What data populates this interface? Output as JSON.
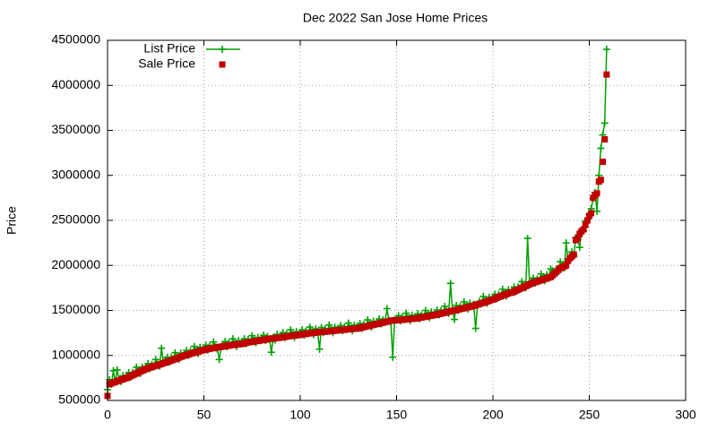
{
  "chart_data": {
    "type": "scatter",
    "title": "Dec 2022 San Jose Home Prices",
    "ylabel": "Price",
    "xlim": [
      0,
      300
    ],
    "xticks": [
      0,
      50,
      100,
      150,
      200,
      250,
      300
    ],
    "ylim": [
      500000,
      4500000
    ],
    "yticks": [
      500000,
      1000000,
      1500000,
      2000000,
      2500000,
      3000000,
      3500000,
      4000000,
      4500000
    ],
    "grid": true,
    "legend": "upper left",
    "x": [
      0,
      1,
      2,
      3,
      4,
      5,
      6,
      7,
      8,
      9,
      10,
      11,
      12,
      13,
      14,
      15,
      16,
      17,
      18,
      19,
      20,
      21,
      22,
      23,
      24,
      25,
      26,
      27,
      28,
      29,
      30,
      31,
      32,
      33,
      34,
      35,
      36,
      37,
      38,
      39,
      40,
      41,
      42,
      43,
      44,
      45,
      46,
      47,
      48,
      49,
      50,
      51,
      52,
      53,
      54,
      55,
      56,
      57,
      58,
      59,
      60,
      61,
      62,
      63,
      64,
      65,
      66,
      67,
      68,
      69,
      70,
      71,
      72,
      73,
      74,
      75,
      76,
      77,
      78,
      79,
      80,
      81,
      82,
      83,
      84,
      85,
      86,
      87,
      88,
      89,
      90,
      91,
      92,
      93,
      94,
      95,
      96,
      97,
      98,
      99,
      100,
      101,
      102,
      103,
      104,
      105,
      106,
      107,
      108,
      109,
      110,
      111,
      112,
      113,
      114,
      115,
      116,
      117,
      118,
      119,
      120,
      121,
      122,
      123,
      124,
      125,
      126,
      127,
      128,
      129,
      130,
      131,
      132,
      133,
      134,
      135,
      136,
      137,
      138,
      139,
      140,
      141,
      142,
      143,
      144,
      145,
      146,
      147,
      148,
      149,
      150,
      151,
      152,
      153,
      154,
      155,
      156,
      157,
      158,
      159,
      160,
      161,
      162,
      163,
      164,
      165,
      166,
      167,
      168,
      169,
      170,
      171,
      172,
      173,
      174,
      175,
      176,
      177,
      178,
      179,
      180,
      181,
      182,
      183,
      184,
      185,
      186,
      187,
      188,
      189,
      190,
      191,
      192,
      193,
      194,
      195,
      196,
      197,
      198,
      199,
      200,
      201,
      202,
      203,
      204,
      205,
      206,
      207,
      208,
      209,
      210,
      211,
      212,
      213,
      214,
      215,
      216,
      217,
      218,
      219,
      220,
      221,
      222,
      223,
      224,
      225,
      226,
      227,
      228,
      229,
      230,
      231,
      232,
      233,
      234,
      235,
      236,
      237,
      238,
      239,
      240,
      241,
      242,
      243,
      244,
      245,
      246,
      247,
      248,
      249,
      250,
      251,
      252,
      253,
      254,
      255,
      256,
      257,
      258,
      259
    ],
    "series": [
      {
        "name": "List Price",
        "color": "#00a000",
        "style": "linespoints",
        "values": [
          620000,
          730000,
          680000,
          830000,
          705000,
          840000,
          730000,
          710000,
          775000,
          750000,
          770000,
          810000,
          760000,
          810000,
          790000,
          870000,
          820000,
          800000,
          870000,
          845000,
          870000,
          910000,
          855000,
          900000,
          880000,
          955000,
          900000,
          880000,
          1080000,
          920000,
          940000,
          980000,
          925000,
          975000,
          950000,
          1030000,
          975000,
          955000,
          1025000,
          995000,
          1020000,
          1055000,
          1000000,
          1050000,
          1025000,
          1100000,
          1045000,
          1020000,
          1090000,
          1060000,
          1080000,
          1115000,
          1060000,
          1105000,
          1080000,
          1150000,
          1095000,
          1070000,
          955000,
          1100000,
          1120000,
          1155000,
          1095000,
          1140000,
          1115000,
          1185000,
          1130000,
          1100000,
          1165000,
          1130000,
          1150000,
          1185000,
          1130000,
          1175000,
          1150000,
          1220000,
          1165000,
          1140000,
          1200000,
          1170000,
          1190000,
          1225000,
          1165000,
          1210000,
          1185000,
          1035000,
          1200000,
          1170000,
          1235000,
          1200000,
          1220000,
          1255000,
          1195000,
          1240000,
          1215000,
          1285000,
          1230000,
          1200000,
          1265000,
          1230000,
          1250000,
          1285000,
          1225000,
          1270000,
          1245000,
          1315000,
          1260000,
          1230000,
          1295000,
          1260000,
          1070000,
          1310000,
          1252000,
          1294000,
          1266000,
          1338000,
          1280000,
          1252000,
          1314000,
          1282000,
          1300000,
          1332000,
          1274000,
          1316000,
          1288000,
          1360000,
          1302000,
          1274000,
          1336000,
          1303000,
          1320000,
          1355000,
          1300000,
          1345000,
          1320000,
          1395000,
          1340000,
          1315000,
          1380000,
          1350000,
          1370000,
          1405000,
          1350000,
          1395000,
          1370000,
          1520000,
          1390000,
          1365000,
          980000,
          1395000,
          1410000,
          1442000,
          1384000,
          1426000,
          1398000,
          1470000,
          1412000,
          1384000,
          1446000,
          1413000,
          1430000,
          1464000,
          1408000,
          1452000,
          1426000,
          1500000,
          1444000,
          1418000,
          1482000,
          1451000,
          1470000,
          1505000,
          1450000,
          1495000,
          1470000,
          1545000,
          1490000,
          1465000,
          1800000,
          1500000,
          1400000,
          1555000,
          1500000,
          1545000,
          1520000,
          1595000,
          1540000,
          1515000,
          1580000,
          1550000,
          1570000,
          1300000,
          1555000,
          1600000,
          1580000,
          1655000,
          1600000,
          1580000,
          1645000,
          1620000,
          1640000,
          1680000,
          1630000,
          1680000,
          1655000,
          1735000,
          1685000,
          1660000,
          1730000,
          1700000,
          1720000,
          1760000,
          1710000,
          1760000,
          1740000,
          1820000,
          1770000,
          1750000,
          2300000,
          1795000,
          1820000,
          1860000,
          1805000,
          1850000,
          1830000,
          1905000,
          1855000,
          1830000,
          1895000,
          1870000,
          1960000,
          1940000,
          1900000,
          1960000,
          1950000,
          2040000,
          1990000,
          1970000,
          2250000,
          2055000,
          2100000,
          2150000,
          2110000,
          2310000,
          2300000,
          2200000,
          2390000,
          2380000,
          2490000,
          2505000,
          2570000,
          2630000,
          2740000,
          2810000,
          2600000,
          3000000,
          3300000,
          3450000,
          3580000,
          4400000
        ]
      },
      {
        "name": "Sale Price",
        "color": "#c00000",
        "style": "points",
        "values": [
          550000,
          680000,
          690000,
          700000,
          705000,
          715000,
          720000,
          730000,
          735000,
          745000,
          750000,
          760000,
          770000,
          780000,
          790000,
          800000,
          810000,
          820000,
          830000,
          840000,
          850000,
          860000,
          865000,
          870000,
          880000,
          885000,
          890000,
          900000,
          905000,
          915000,
          920000,
          930000,
          935000,
          945000,
          950000,
          960000,
          965000,
          975000,
          985000,
          990000,
          1000000,
          1005000,
          1010000,
          1020000,
          1025000,
          1030000,
          1035000,
          1040000,
          1050000,
          1055000,
          1060000,
          1065000,
          1070000,
          1075000,
          1080000,
          1080000,
          1085000,
          1090000,
          1095000,
          1095000,
          1100000,
          1105000,
          1105000,
          1110000,
          1115000,
          1115000,
          1120000,
          1120000,
          1125000,
          1125000,
          1130000,
          1135000,
          1140000,
          1145000,
          1150000,
          1150000,
          1155000,
          1160000,
          1160000,
          1165000,
          1170000,
          1175000,
          1175000,
          1180000,
          1185000,
          1185000,
          1190000,
          1190000,
          1195000,
          1195000,
          1200000,
          1205000,
          1205000,
          1210000,
          1215000,
          1215000,
          1220000,
          1220000,
          1225000,
          1225000,
          1230000,
          1235000,
          1235000,
          1240000,
          1245000,
          1245000,
          1250000,
          1250000,
          1255000,
          1255000,
          1260000,
          1260000,
          1262000,
          1264000,
          1266000,
          1268000,
          1270000,
          1272000,
          1274000,
          1277000,
          1280000,
          1282000,
          1284000,
          1286000,
          1288000,
          1290000,
          1292000,
          1294000,
          1296000,
          1298000,
          1300000,
          1305000,
          1310000,
          1315000,
          1320000,
          1325000,
          1330000,
          1335000,
          1340000,
          1345000,
          1350000,
          1355000,
          1360000,
          1365000,
          1370000,
          1375000,
          1380000,
          1385000,
          1388000,
          1390000,
          1390000,
          1392000,
          1394000,
          1396000,
          1398000,
          1400000,
          1402000,
          1404000,
          1406000,
          1408000,
          1410000,
          1414000,
          1418000,
          1422000,
          1426000,
          1430000,
          1434000,
          1438000,
          1442000,
          1446000,
          1450000,
          1455000,
          1460000,
          1465000,
          1470000,
          1475000,
          1480000,
          1485000,
          1490000,
          1495000,
          1500000,
          1505000,
          1510000,
          1515000,
          1520000,
          1525000,
          1530000,
          1535000,
          1540000,
          1545000,
          1550000,
          1560000,
          1565000,
          1570000,
          1580000,
          1585000,
          1590000,
          1600000,
          1605000,
          1615000,
          1620000,
          1630000,
          1640000,
          1650000,
          1655000,
          1665000,
          1675000,
          1680000,
          1690000,
          1695000,
          1700000,
          1710000,
          1720000,
          1730000,
          1740000,
          1750000,
          1760000,
          1770000,
          1780000,
          1790000,
          1800000,
          1810000,
          1815000,
          1820000,
          1830000,
          1835000,
          1845000,
          1850000,
          1855000,
          1865000,
          1870000,
          1890000,
          1910000,
          1930000,
          1950000,
          1970000,
          1980000,
          1990000,
          2000000,
          2050000,
          2080000,
          2100000,
          2120000,
          2280000,
          2300000,
          2350000,
          2380000,
          2400000,
          2450000,
          2500000,
          2550000,
          2580000,
          2750000,
          2780000,
          2800000,
          2930000,
          2950000,
          3150000,
          3400000,
          4120000
        ]
      }
    ]
  }
}
